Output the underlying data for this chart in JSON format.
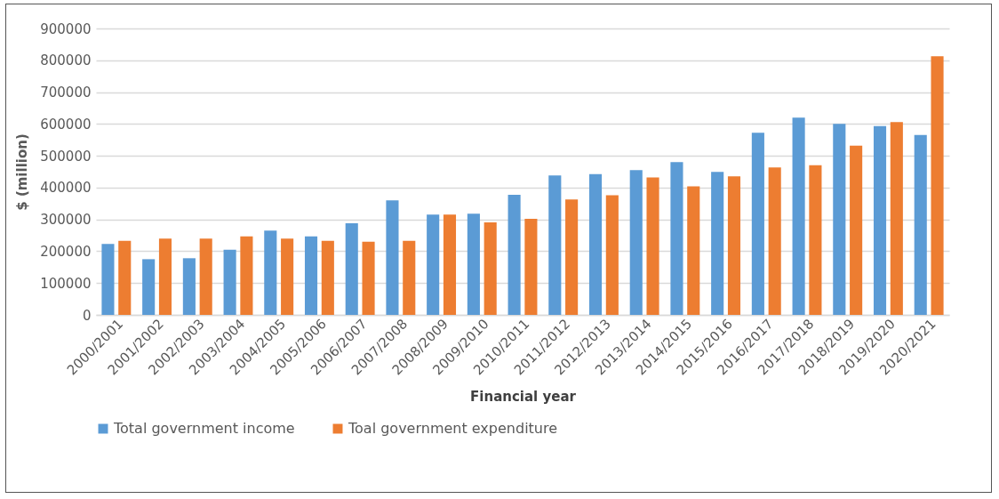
{
  "chart_data": {
    "type": "bar",
    "xlabel": "Financial year",
    "ylabel": "$ (million)",
    "categories": [
      "2000/2001",
      "2001/2002",
      "2002/2003",
      "2003/2004",
      "2004/2005",
      "2005/2006",
      "2006/2007",
      "2007/2008",
      "2008/2009",
      "2009/2010",
      "2010/2011",
      "2011/2012",
      "2012/2013",
      "2013/2014",
      "2014/2015",
      "2015/2016",
      "2016/2017",
      "2017/2018",
      "2018/2019",
      "2019/2020",
      "2020/2021"
    ],
    "series": [
      {
        "name": "Total government income",
        "color": "#5b9bd5",
        "values": [
          223000,
          175000,
          178000,
          205000,
          265000,
          247000,
          288000,
          360000,
          315000,
          318000,
          377000,
          438000,
          442000,
          455000,
          480000,
          449000,
          572000,
          620000,
          600000,
          593000,
          565000
        ]
      },
      {
        "name": "Toal government expenditure",
        "color": "#ed7d31",
        "values": [
          233000,
          240000,
          240000,
          247000,
          240000,
          233000,
          230000,
          233000,
          315000,
          291000,
          302000,
          363000,
          376000,
          432000,
          404000,
          435000,
          463000,
          470000,
          532000,
          606000,
          813000
        ]
      }
    ],
    "ylim": [
      0,
      900000
    ],
    "yticks": [
      0,
      100000,
      200000,
      300000,
      400000,
      500000,
      600000,
      700000,
      800000,
      900000
    ],
    "grid": "y",
    "legend": "bottom"
  }
}
